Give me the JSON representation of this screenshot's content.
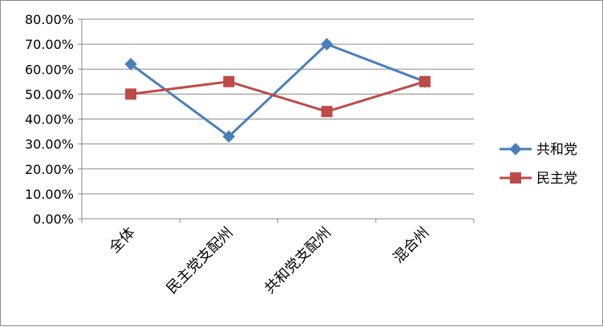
{
  "chart_data": {
    "type": "line",
    "categories": [
      "全体",
      "民主党支配州",
      "共和党支配州",
      "混合州"
    ],
    "series": [
      {
        "name": "共和党",
        "values": [
          0.62,
          0.33,
          0.7,
          0.55
        ],
        "color": "#4a7ebb",
        "marker": "diamond"
      },
      {
        "name": "民主党",
        "values": [
          0.5,
          0.55,
          0.43,
          0.55
        ],
        "color": "#be4b48",
        "marker": "square"
      }
    ],
    "yticks": [
      "0.00%",
      "10.00%",
      "20.00%",
      "30.00%",
      "40.00%",
      "50.00%",
      "60.00%",
      "70.00%",
      "80.00%"
    ],
    "ylim": [
      0,
      0.8
    ],
    "grid": true,
    "legend": "right"
  }
}
